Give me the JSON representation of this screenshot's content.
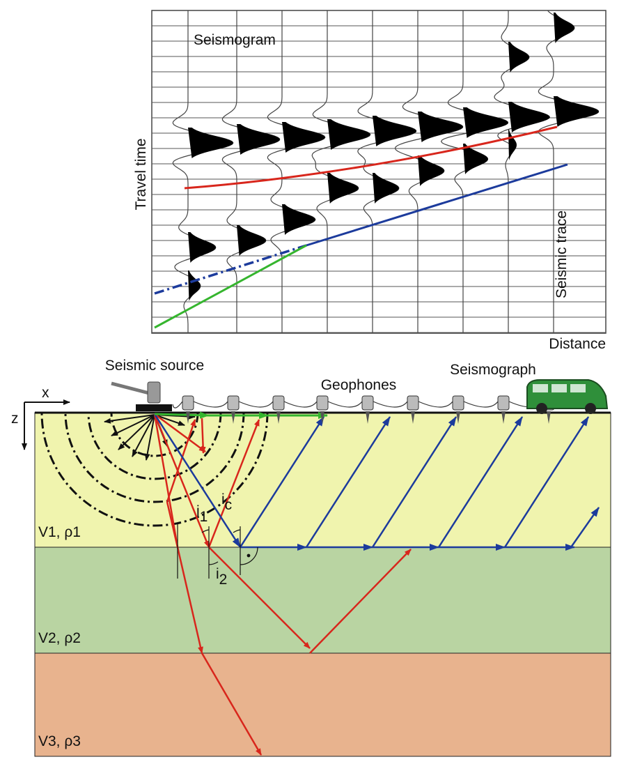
{
  "seismogram": {
    "title": "Seismogram",
    "y_axis_label": "Travel time",
    "trace_label": "Seismic trace",
    "x_axis_label": "Distance"
  },
  "survey": {
    "source": "Seismic source",
    "geophones": "Geophones",
    "seismograph": "Seismograph",
    "axes": {
      "x": "x",
      "z": "z"
    }
  },
  "layers": [
    {
      "label": "V1, ρ1"
    },
    {
      "label": "V2, ρ2"
    },
    {
      "label": "V3, ρ3"
    }
  ],
  "angles": [
    {
      "symbol": "i",
      "subscript": "1"
    },
    {
      "symbol": "i",
      "subscript": "c"
    },
    {
      "symbol": "i",
      "subscript": "2"
    }
  ]
}
